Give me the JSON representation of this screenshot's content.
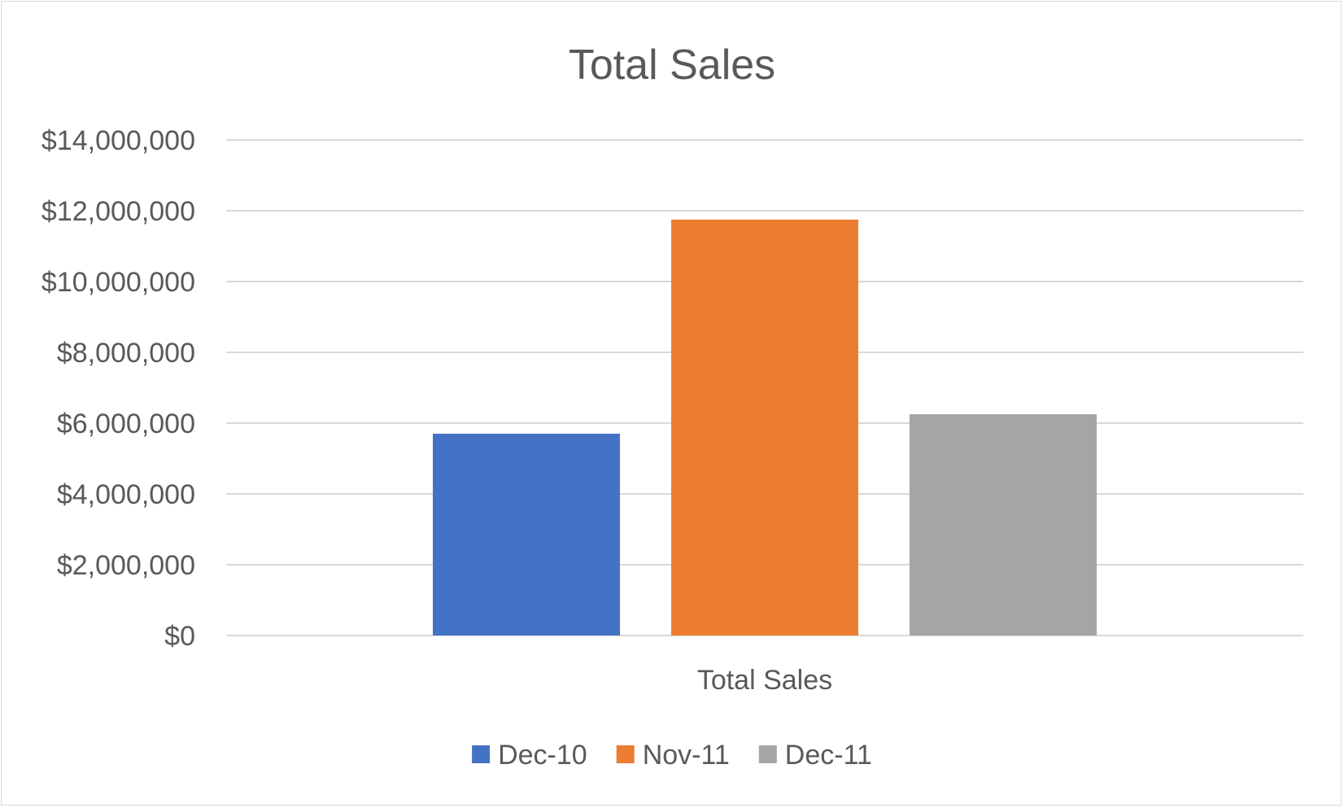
{
  "chart_data": {
    "type": "bar",
    "title": "Total Sales",
    "categories": [
      "Total Sales"
    ],
    "series": [
      {
        "name": "Dec-10",
        "values": [
          5700000
        ],
        "color": "#4472C4"
      },
      {
        "name": "Nov-11",
        "values": [
          11750000
        ],
        "color": "#ED7D31"
      },
      {
        "name": "Dec-11",
        "values": [
          6250000
        ],
        "color": "#A5A5A5"
      }
    ],
    "y_ticks": [
      "$0",
      "$2,000,000",
      "$4,000,000",
      "$6,000,000",
      "$8,000,000",
      "$10,000,000",
      "$12,000,000",
      "$14,000,000"
    ],
    "ylim": [
      0,
      14000000
    ],
    "y_step": 2000000,
    "grid": true,
    "legend_position": "bottom",
    "gridline_color": "#d9d9d9"
  }
}
